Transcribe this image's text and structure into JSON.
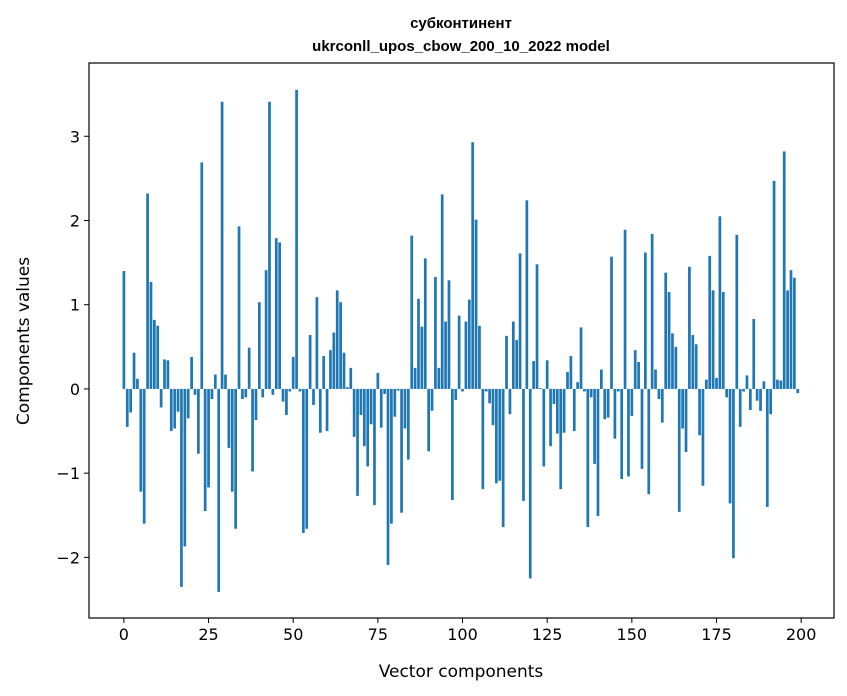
{
  "chart_data": {
    "type": "bar",
    "title_line1": "субконтинент",
    "title_line2": "ukrconll_upos_cbow_200_10_2022 model",
    "xlabel": "Vector components",
    "ylabel": "Components values",
    "xlim": [
      -10.3,
      209.7
    ],
    "ylim": [
      -2.72,
      3.87
    ],
    "xticks": [
      0,
      25,
      50,
      75,
      100,
      125,
      150,
      175,
      200
    ],
    "yticks": [
      -2,
      -1,
      0,
      1,
      2,
      3
    ],
    "xtick_labels": [
      "0",
      "25",
      "50",
      "75",
      "100",
      "125",
      "150",
      "175",
      "200"
    ],
    "ytick_labels": [
      "−2",
      "−1",
      "0",
      "1",
      "2",
      "3"
    ],
    "color": "#1f77b4",
    "grid": false,
    "values": [
      1.4,
      -0.45,
      -0.28,
      0.43,
      0.12,
      -1.22,
      -1.6,
      2.32,
      1.27,
      0.82,
      0.75,
      -0.22,
      0.35,
      0.34,
      -0.5,
      -0.47,
      -0.27,
      -2.35,
      -1.87,
      -0.35,
      0.38,
      -0.07,
      -0.77,
      2.69,
      -1.45,
      -1.17,
      -0.12,
      0.17,
      -2.41,
      3.41,
      0.17,
      -0.7,
      -1.22,
      -1.66,
      1.93,
      -0.12,
      -0.1,
      0.49,
      -0.98,
      -0.37,
      1.03,
      -0.1,
      1.41,
      3.41,
      -0.07,
      1.79,
      1.74,
      -0.15,
      -0.31,
      -0.03,
      0.38,
      3.55,
      -0.03,
      -1.71,
      -1.66,
      0.64,
      -0.19,
      1.09,
      -0.52,
      0.39,
      -0.5,
      0.46,
      0.67,
      1.17,
      1.03,
      0.43,
      0.02,
      0.25,
      -0.57,
      -1.27,
      -0.31,
      -0.68,
      -0.92,
      -0.42,
      -1.38,
      0.19,
      -0.46,
      -0.06,
      -2.09,
      -1.6,
      -0.33,
      -0.02,
      -1.47,
      -0.47,
      -0.84,
      1.82,
      0.25,
      1.07,
      0.74,
      1.55,
      -0.74,
      -0.26,
      1.33,
      0.25,
      2.31,
      0.8,
      1.29,
      -1.32,
      -0.13,
      0.87,
      -0.03,
      0.8,
      1.06,
      2.93,
      2.01,
      0.75,
      -1.19,
      -0.03,
      -0.17,
      -0.43,
      -1.12,
      -1.09,
      -1.64,
      0.63,
      -0.3,
      0.8,
      0.58,
      1.61,
      -1.33,
      2.24,
      -2.25,
      0.33,
      1.48,
      0.01,
      -0.92,
      0.34,
      -0.68,
      -0.18,
      -0.53,
      -1.19,
      -0.52,
      0.2,
      0.39,
      -0.5,
      0.08,
      0.73,
      -0.03,
      -1.64,
      -0.1,
      -0.89,
      -1.51,
      0.23,
      -0.36,
      -0.34,
      1.57,
      -0.59,
      -0.03,
      -1.07,
      1.89,
      -1.04,
      -0.32,
      0.46,
      0.32,
      -0.95,
      1.62,
      -1.25,
      1.84,
      0.23,
      -0.12,
      -0.4,
      1.38,
      1.15,
      0.66,
      0.5,
      -1.46,
      -0.47,
      -0.75,
      1.45,
      0.64,
      0.53,
      -0.55,
      -1.15,
      0.11,
      1.58,
      1.17,
      0.13,
      2.05,
      1.15,
      -0.1,
      -1.36,
      -2.01,
      1.83,
      -0.45,
      -0.03,
      0.16,
      -0.25,
      0.83,
      -0.14,
      -0.26,
      0.09,
      -1.4,
      -0.3,
      2.47,
      0.11,
      0.1,
      2.82,
      1.17,
      1.41,
      1.32,
      -0.05
    ]
  }
}
